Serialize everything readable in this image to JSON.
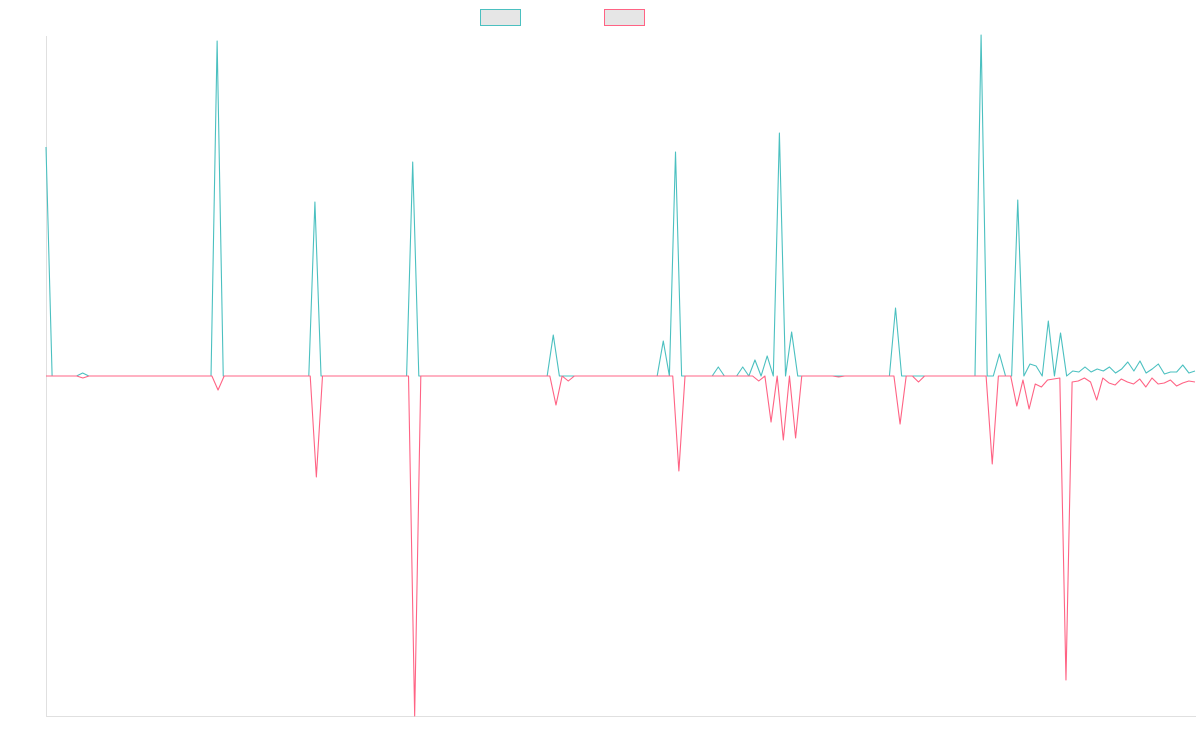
{
  "chart_data": {
    "type": "line",
    "title": "",
    "xlabel": "",
    "ylabel": "",
    "grid": false,
    "legend_position": "top-center",
    "ylim": [
      -340,
      340
    ],
    "series": [
      {
        "color": "#4bc0c0",
        "fill": "#e6e6e6",
        "values": [
          229,
          0,
          0,
          0,
          0,
          0,
          3,
          0,
          0,
          0,
          0,
          0,
          0,
          0,
          0,
          0,
          0,
          0,
          0,
          0,
          0,
          0,
          0,
          0,
          0,
          0,
          0,
          0,
          335,
          0,
          0,
          0,
          0,
          0,
          0,
          0,
          0,
          0,
          0,
          0,
          0,
          0,
          0,
          0,
          174,
          0,
          0,
          0,
          0,
          0,
          0,
          0,
          0,
          0,
          0,
          0,
          0,
          0,
          0,
          0,
          214,
          0,
          0,
          0,
          0,
          0,
          0,
          0,
          0,
          0,
          0,
          0,
          0,
          0,
          0,
          0,
          0,
          0,
          0,
          0,
          0,
          0,
          0,
          41,
          0,
          0,
          0,
          0,
          0,
          0,
          0,
          0,
          0,
          0,
          0,
          0,
          0,
          0,
          0,
          0,
          0,
          35,
          0,
          224,
          0,
          0,
          0,
          0,
          0,
          0,
          9,
          0,
          0,
          0,
          9,
          0,
          16,
          0,
          20,
          0,
          243,
          0,
          44,
          0,
          0,
          0,
          0,
          0,
          0,
          0,
          0,
          0,
          0,
          0,
          0,
          0,
          0,
          0,
          0,
          68,
          0,
          0,
          0,
          0,
          0,
          0,
          0,
          0,
          0,
          0,
          0,
          0,
          0,
          341,
          0,
          0,
          22,
          0,
          0,
          176,
          0,
          12,
          10,
          0,
          55,
          0,
          43,
          0,
          5,
          4,
          9,
          4,
          7,
          5,
          9,
          3,
          7,
          14,
          5,
          15,
          3,
          7,
          12,
          2,
          4,
          4,
          11,
          3,
          5
        ]
      },
      {
        "color": "#ff6384",
        "fill": "#e6e6e6",
        "values": [
          0,
          0,
          0,
          0,
          0,
          0,
          -2,
          0,
          0,
          0,
          0,
          0,
          0,
          0,
          0,
          0,
          0,
          0,
          0,
          0,
          0,
          0,
          0,
          0,
          0,
          0,
          0,
          0,
          -14,
          0,
          0,
          0,
          0,
          0,
          0,
          0,
          0,
          0,
          0,
          0,
          0,
          0,
          0,
          0,
          -101,
          0,
          0,
          0,
          0,
          0,
          0,
          0,
          0,
          0,
          0,
          0,
          0,
          0,
          0,
          0,
          -340,
          0,
          0,
          0,
          0,
          0,
          0,
          0,
          0,
          0,
          0,
          0,
          0,
          0,
          0,
          0,
          0,
          0,
          0,
          0,
          0,
          0,
          0,
          -29,
          0,
          -5,
          0,
          0,
          0,
          0,
          0,
          0,
          0,
          0,
          0,
          0,
          0,
          0,
          0,
          0,
          0,
          0,
          0,
          -95,
          0,
          0,
          0,
          0,
          0,
          0,
          0,
          0,
          0,
          0,
          0,
          0,
          -5,
          0,
          -46,
          0,
          -64,
          0,
          -62,
          0,
          0,
          0,
          0,
          0,
          0,
          -1,
          0,
          0,
          0,
          0,
          0,
          0,
          0,
          0,
          0,
          -48,
          0,
          0,
          -6,
          0,
          0,
          0,
          0,
          0,
          0,
          0,
          0,
          0,
          0,
          0,
          -88,
          0,
          0,
          0,
          -30,
          -4,
          -33,
          -8,
          -11,
          -4,
          -3,
          -2,
          -304,
          -6,
          -5,
          -2,
          -6,
          -24,
          -2,
          -7,
          -9,
          -3,
          -6,
          -8,
          -3,
          -11,
          -2,
          -8,
          -7,
          -4,
          -10,
          -7,
          -5,
          -6
        ]
      }
    ]
  }
}
